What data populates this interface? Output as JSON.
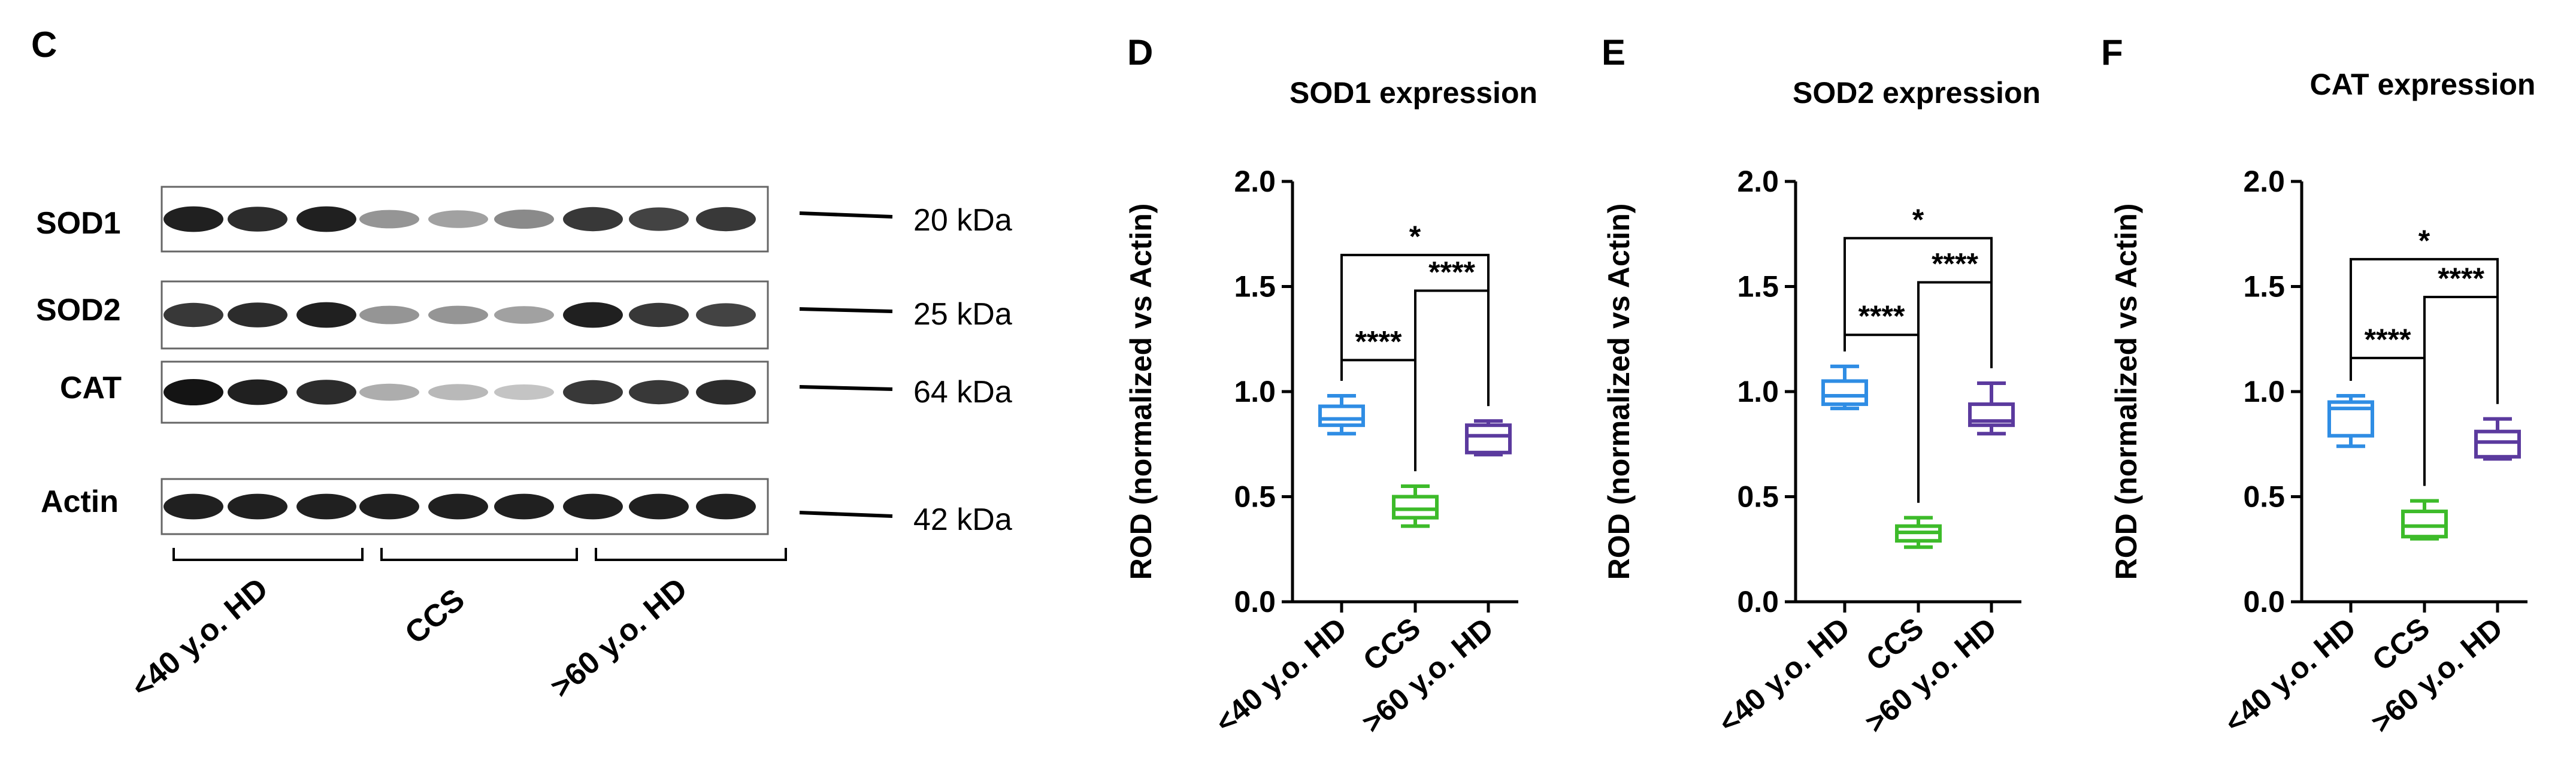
{
  "panels": {
    "C": "C",
    "D": "D",
    "E": "E",
    "F": "F"
  },
  "blot": {
    "rows": [
      {
        "label": "SOD1",
        "size": "20 kDa",
        "intensities": [
          0.95,
          0.9,
          0.95,
          0.45,
          0.4,
          0.5,
          0.85,
          0.8,
          0.85
        ]
      },
      {
        "label": "SOD2",
        "size": "25 kDa",
        "intensities": [
          0.85,
          0.9,
          0.95,
          0.45,
          0.45,
          0.4,
          0.95,
          0.85,
          0.8
        ]
      },
      {
        "label": "CAT",
        "size": "64 kDa",
        "intensities": [
          1.0,
          0.95,
          0.9,
          0.35,
          0.3,
          0.25,
          0.85,
          0.85,
          0.9
        ]
      },
      {
        "label": "Actin",
        "size": "42 kDa",
        "intensities": [
          0.95,
          0.95,
          0.95,
          0.95,
          0.95,
          0.95,
          0.95,
          0.95,
          0.95
        ]
      }
    ],
    "groups": [
      "<40 y.o. HD",
      "CCS",
      ">60 y.o. HD"
    ]
  },
  "colors": {
    "young": "#2f8de4",
    "ccs": "#3dbb2a",
    "old": "#5b3a9e",
    "black": "#000000"
  },
  "chart_data": [
    {
      "panel": "D",
      "type": "box",
      "title": "SOD1 expression",
      "ylabel": "ROD (normalized vs Actin)",
      "ylim": [
        0,
        2.0
      ],
      "yticks": [
        "0.0",
        "0.5",
        "1.0",
        "1.5",
        "2.0"
      ],
      "categories": [
        "<40 y.o. HD",
        "CCS",
        ">60 y.o. HD"
      ],
      "boxes": [
        {
          "min": 0.8,
          "q1": 0.84,
          "median": 0.87,
          "q3": 0.93,
          "max": 0.98
        },
        {
          "min": 0.36,
          "q1": 0.4,
          "median": 0.44,
          "q3": 0.5,
          "max": 0.55
        },
        {
          "min": 0.7,
          "q1": 0.71,
          "median": 0.79,
          "q3": 0.84,
          "max": 0.86
        }
      ],
      "significance": [
        {
          "from": 0,
          "to": 2,
          "label": "*",
          "y": 1.65
        },
        {
          "from": 1,
          "to": 2,
          "label": "****",
          "y": 1.48
        },
        {
          "from": 0,
          "to": 1,
          "label": "****",
          "y": 1.15
        }
      ]
    },
    {
      "panel": "E",
      "type": "box",
      "title": "SOD2 expression",
      "ylabel": "ROD (normalized vs Actin)",
      "ylim": [
        0,
        2.0
      ],
      "yticks": [
        "0.0",
        "0.5",
        "1.0",
        "1.5",
        "2.0"
      ],
      "categories": [
        "<40 y.o. HD",
        "CCS",
        ">60 y.o. HD"
      ],
      "boxes": [
        {
          "min": 0.92,
          "q1": 0.94,
          "median": 0.98,
          "q3": 1.05,
          "max": 1.12
        },
        {
          "min": 0.26,
          "q1": 0.29,
          "median": 0.33,
          "q3": 0.36,
          "max": 0.4
        },
        {
          "min": 0.8,
          "q1": 0.84,
          "median": 0.86,
          "q3": 0.94,
          "max": 1.04
        }
      ],
      "significance": [
        {
          "from": 0,
          "to": 2,
          "label": "*",
          "y": 1.73
        },
        {
          "from": 1,
          "to": 2,
          "label": "****",
          "y": 1.52
        },
        {
          "from": 0,
          "to": 1,
          "label": "****",
          "y": 1.27
        }
      ]
    },
    {
      "panel": "F",
      "type": "box",
      "title": "CAT expression",
      "ylabel": "ROD (normalized vs Actin)",
      "ylim": [
        0,
        2.0
      ],
      "yticks": [
        "0.0",
        "0.5",
        "1.0",
        "1.5",
        "2.0"
      ],
      "categories": [
        "<40 y.o. HD",
        "CCS",
        ">60 y.o. HD"
      ],
      "boxes": [
        {
          "min": 0.74,
          "q1": 0.79,
          "median": 0.92,
          "q3": 0.95,
          "max": 0.98
        },
        {
          "min": 0.3,
          "q1": 0.31,
          "median": 0.36,
          "q3": 0.43,
          "max": 0.48
        },
        {
          "min": 0.68,
          "q1": 0.69,
          "median": 0.76,
          "q3": 0.81,
          "max": 0.87
        }
      ],
      "significance": [
        {
          "from": 0,
          "to": 2,
          "label": "*",
          "y": 1.63
        },
        {
          "from": 1,
          "to": 2,
          "label": "****",
          "y": 1.45
        },
        {
          "from": 0,
          "to": 1,
          "label": "****",
          "y": 1.16
        }
      ]
    }
  ]
}
